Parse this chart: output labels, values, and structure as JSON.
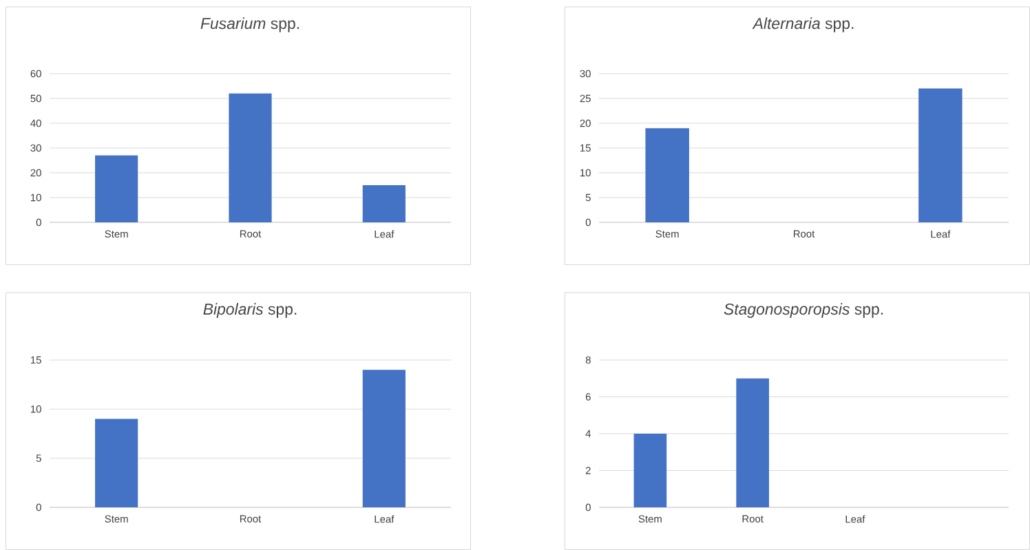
{
  "chart_data": [
    {
      "type": "bar",
      "title": "*Fusarium* spp.",
      "categories": [
        "Stem",
        "Root",
        "Leaf"
      ],
      "values": [
        27,
        52,
        15
      ],
      "color": "#4472c4",
      "ylim": [
        0,
        60
      ],
      "yticks": [
        0,
        10,
        20,
        30,
        40,
        50,
        60
      ],
      "grid": "y"
    },
    {
      "type": "bar",
      "title": "*Alternaria* spp.",
      "categories": [
        "Stem",
        "Root",
        "Leaf"
      ],
      "values": [
        19,
        null,
        27
      ],
      "color": "#4472c4",
      "ylim": [
        0,
        30
      ],
      "yticks": [
        0,
        5,
        10,
        15,
        20,
        25,
        30
      ],
      "grid": "y"
    },
    {
      "type": "bar",
      "title": "*Bipolaris* spp.",
      "categories": [
        "Stem",
        "Root",
        "Leaf"
      ],
      "values": [
        9,
        null,
        14
      ],
      "color": "#4472c4",
      "ylim": [
        0,
        15
      ],
      "yticks": [
        0,
        5,
        10,
        15
      ],
      "grid": "y"
    },
    {
      "type": "bar",
      "title": "*Stagonosporopsis* spp.",
      "categories": [
        "Stem",
        "Root",
        "Leaf",
        null
      ],
      "values": [
        4,
        7,
        null,
        null
      ],
      "color": "#4472c4",
      "ylim": [
        0,
        8
      ],
      "yticks": [
        0,
        2,
        4,
        6,
        8
      ],
      "grid": "y"
    }
  ]
}
